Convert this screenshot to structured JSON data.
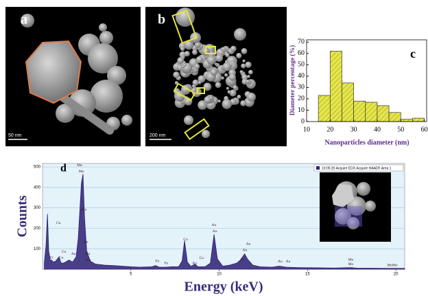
{
  "panels": [
    {
      "label": "a",
      "scale_bar": "50 nm"
    },
    {
      "label": "b",
      "scale_bar": "200 nm"
    }
  ],
  "chart_data": [
    {
      "type": "histogram",
      "panel_label": "c",
      "ylabel": "Diameter percentage (%)",
      "xlabel": "Nanoparticles diameter (nm)",
      "bins": [
        15,
        20,
        25,
        30,
        35,
        40,
        45,
        50,
        55,
        60
      ],
      "values": [
        23,
        62,
        34,
        18,
        17,
        14,
        8,
        2,
        3
      ],
      "color": "#e6e64a",
      "xlim": [
        10,
        61
      ],
      "xticks": [
        10,
        20,
        30,
        40,
        50,
        60
      ],
      "ylim": [
        0,
        72
      ],
      "yticks": [
        0,
        10,
        20,
        30,
        40,
        50,
        60,
        70
      ]
    },
    {
      "type": "area",
      "panel_label": "d",
      "ylabel": "Counts",
      "xlabel": "Energy (keV)",
      "x": [
        0.1,
        0.2,
        0.28,
        0.35,
        0.45,
        0.52,
        0.6,
        0.75,
        0.93,
        1.05,
        1.2,
        1.5,
        1.7,
        1.9,
        2.02,
        2.12,
        2.2,
        2.29,
        2.38,
        2.5,
        2.7,
        3.0,
        3.5,
        4,
        4.5,
        5,
        5.5,
        6.2,
        6.4,
        6.6,
        7.0,
        7.3,
        7.7,
        7.9,
        8.04,
        8.2,
        8.4,
        8.63,
        8.8,
        9.2,
        9.5,
        9.71,
        9.9,
        10.2,
        10.6,
        11.0,
        11.2,
        11.44,
        11.6,
        11.9,
        12.3,
        13.0,
        13.4,
        13.8,
        14.5,
        15.5,
        16.5,
        17.48,
        17.8,
        18.5,
        19.6,
        20.5
      ],
      "series": [
        {
          "name": "10:05:20 Acquire EDX Acquire HAADF Area 1",
          "color": "#2e1f73",
          "values": [
            30,
            120,
            270,
            90,
            40,
            45,
            35,
            40,
            60,
            30,
            30,
            45,
            35,
            60,
            150,
            300,
            420,
            465,
            250,
            90,
            40,
            25,
            20,
            18,
            15,
            12,
            10,
            12,
            18,
            10,
            10,
            12,
            12,
            40,
            140,
            35,
            14,
            25,
            12,
            12,
            30,
            170,
            50,
            15,
            20,
            30,
            45,
            75,
            50,
            20,
            12,
            10,
            15,
            10,
            8,
            7,
            6,
            8,
            5,
            5,
            4,
            4
          ]
        }
      ],
      "xlim": [
        0,
        20.5
      ],
      "xticks": [
        5,
        10,
        15,
        20
      ],
      "ylim": [
        0,
        517
      ],
      "yticks": [
        100,
        200,
        300,
        400,
        500
      ],
      "grid": true,
      "annotations": [
        {
          "text": "O",
          "x": 0.5,
          "y": 57
        },
        {
          "text": "Cu",
          "x": 0.9,
          "y": 225
        },
        {
          "text": "Cu",
          "x": 1.05,
          "y": 57
        },
        {
          "text": "Cu",
          "x": 1.2,
          "y": 85
        },
        {
          "text": "Au",
          "x": 1.75,
          "y": 74
        },
        {
          "text": "Mo",
          "x": 2.1,
          "y": 508
        },
        {
          "text": "Mo",
          "x": 2.2,
          "y": 477
        },
        {
          "text": "Mo",
          "x": 2.35,
          "y": 292
        },
        {
          "text": "Au",
          "x": 2.45,
          "y": 134
        },
        {
          "text": "Mo",
          "x": 2.55,
          "y": 74
        },
        {
          "text": "Mo",
          "x": 2.58,
          "y": 44
        },
        {
          "text": "Fe",
          "x": 6.5,
          "y": 40
        },
        {
          "text": "Fe",
          "x": 7.0,
          "y": 30
        },
        {
          "text": "Cu",
          "x": 8.1,
          "y": 145
        },
        {
          "text": "Au",
          "x": 8.6,
          "y": 30
        },
        {
          "text": "Cu",
          "x": 9.0,
          "y": 54
        },
        {
          "text": "Au",
          "x": 9.7,
          "y": 215
        },
        {
          "text": "Au",
          "x": 9.75,
          "y": 185
        },
        {
          "text": "Au",
          "x": 11.65,
          "y": 124
        },
        {
          "text": "Au",
          "x": 11.45,
          "y": 94
        },
        {
          "text": "Au",
          "x": 11.3,
          "y": 47
        },
        {
          "text": "Au",
          "x": 13.45,
          "y": 37
        },
        {
          "text": "Au",
          "x": 13.9,
          "y": 37
        },
        {
          "text": "Mo",
          "x": 17.45,
          "y": 47
        },
        {
          "text": "Mo",
          "x": 17.45,
          "y": 24
        },
        {
          "text": "MoMo",
          "x": 19.8,
          "y": 20
        }
      ]
    }
  ]
}
